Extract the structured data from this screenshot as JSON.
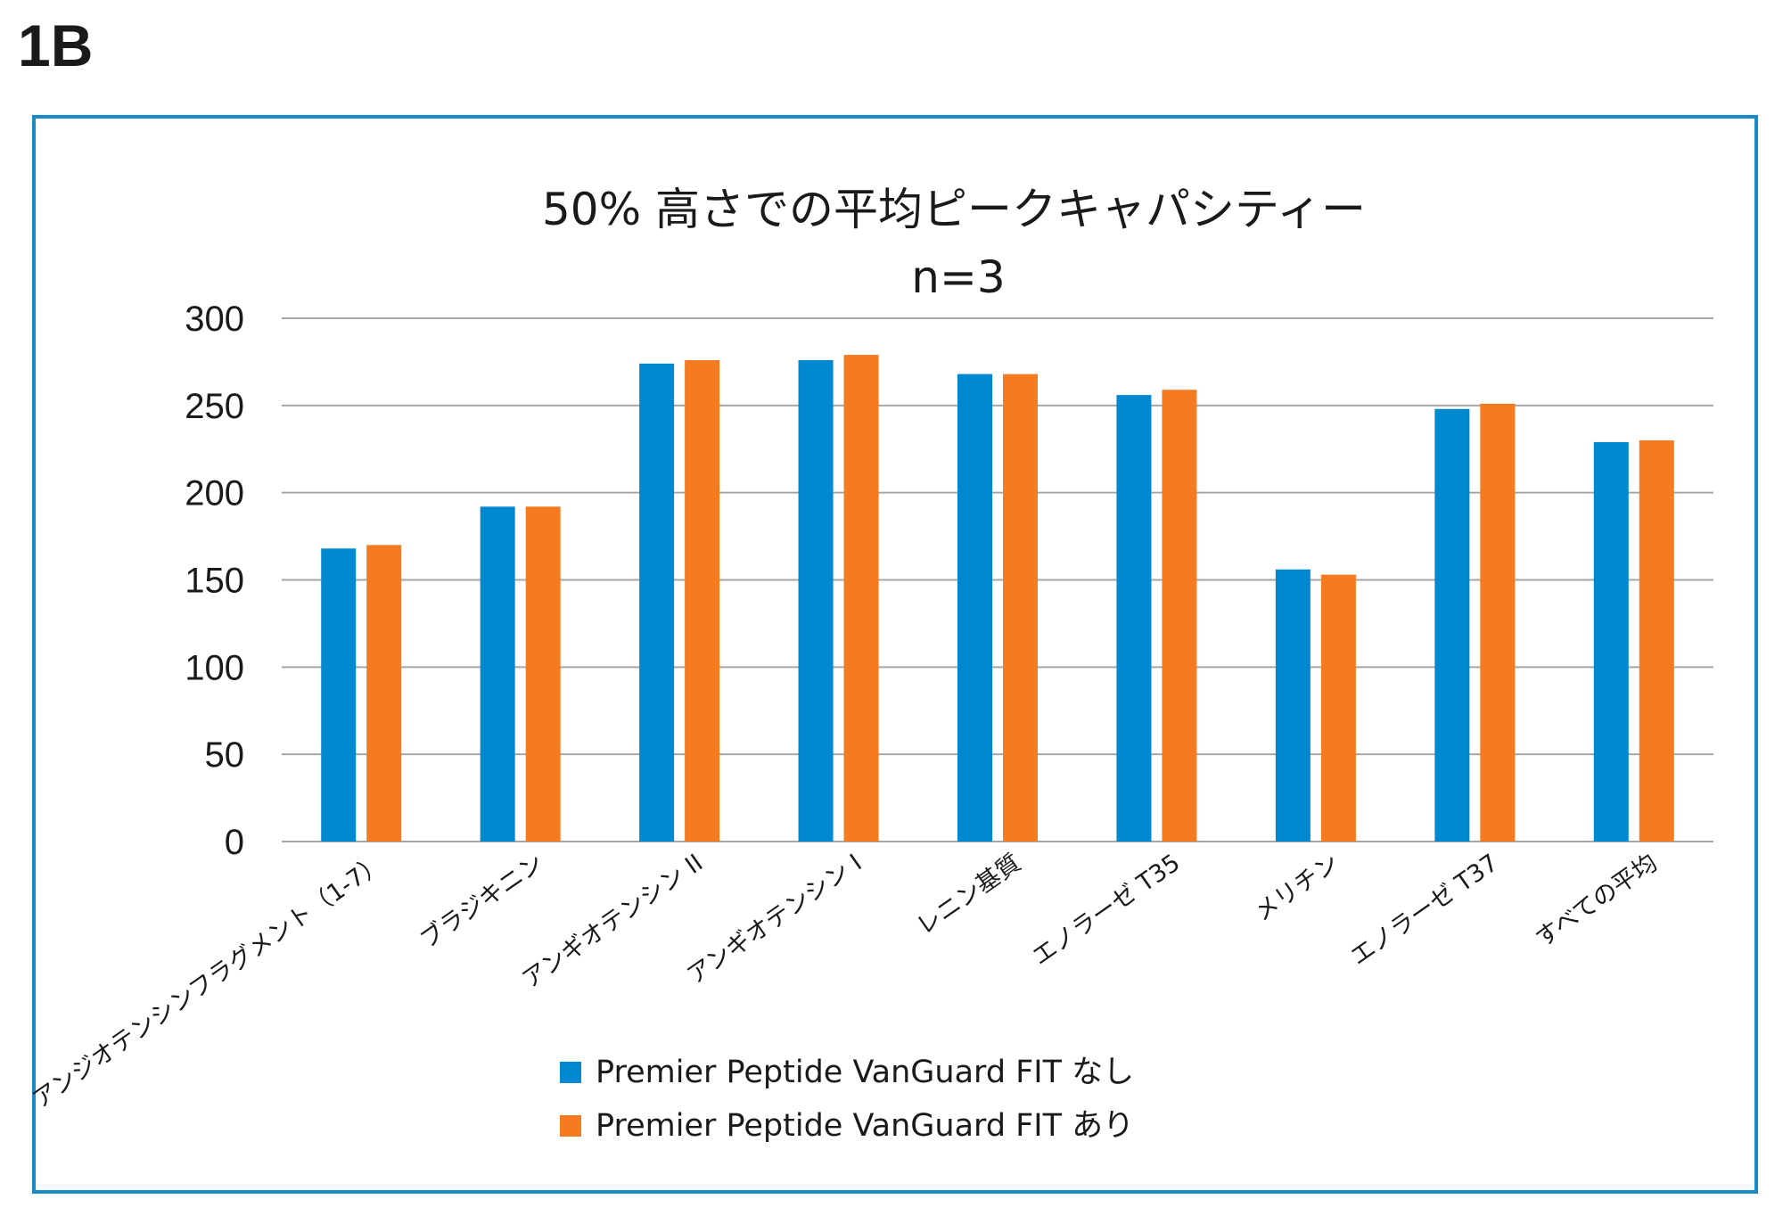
{
  "panel_label": "1B",
  "chart_data": {
    "type": "bar",
    "title": "50% 高さでの平均ピークキャパシティー",
    "subtitle": "n=3",
    "xlabel": "",
    "ylabel": "",
    "ylim": [
      0,
      300
    ],
    "yticks": [
      0,
      50,
      100,
      150,
      200,
      250,
      300
    ],
    "grid": true,
    "legend_position": "bottom",
    "categories": [
      "アンジオテンシンフラグメント（1-7）",
      "ブラジキニン",
      "アンギオテンシン II",
      "アンギオテンシン I",
      "レニン基質",
      "エノラーゼ T35",
      "メリチン",
      "エノラーゼ T37",
      "すべての平均"
    ],
    "series": [
      {
        "name": "Premier Peptide VanGuard FIT なし",
        "color": "#0088d1",
        "values": [
          168,
          192,
          274,
          276,
          268,
          256,
          156,
          248,
          229
        ]
      },
      {
        "name": "Premier Peptide VanGuard FIT あり",
        "color": "#f47b20",
        "values": [
          170,
          192,
          276,
          279,
          268,
          259,
          153,
          251,
          230
        ]
      }
    ]
  }
}
